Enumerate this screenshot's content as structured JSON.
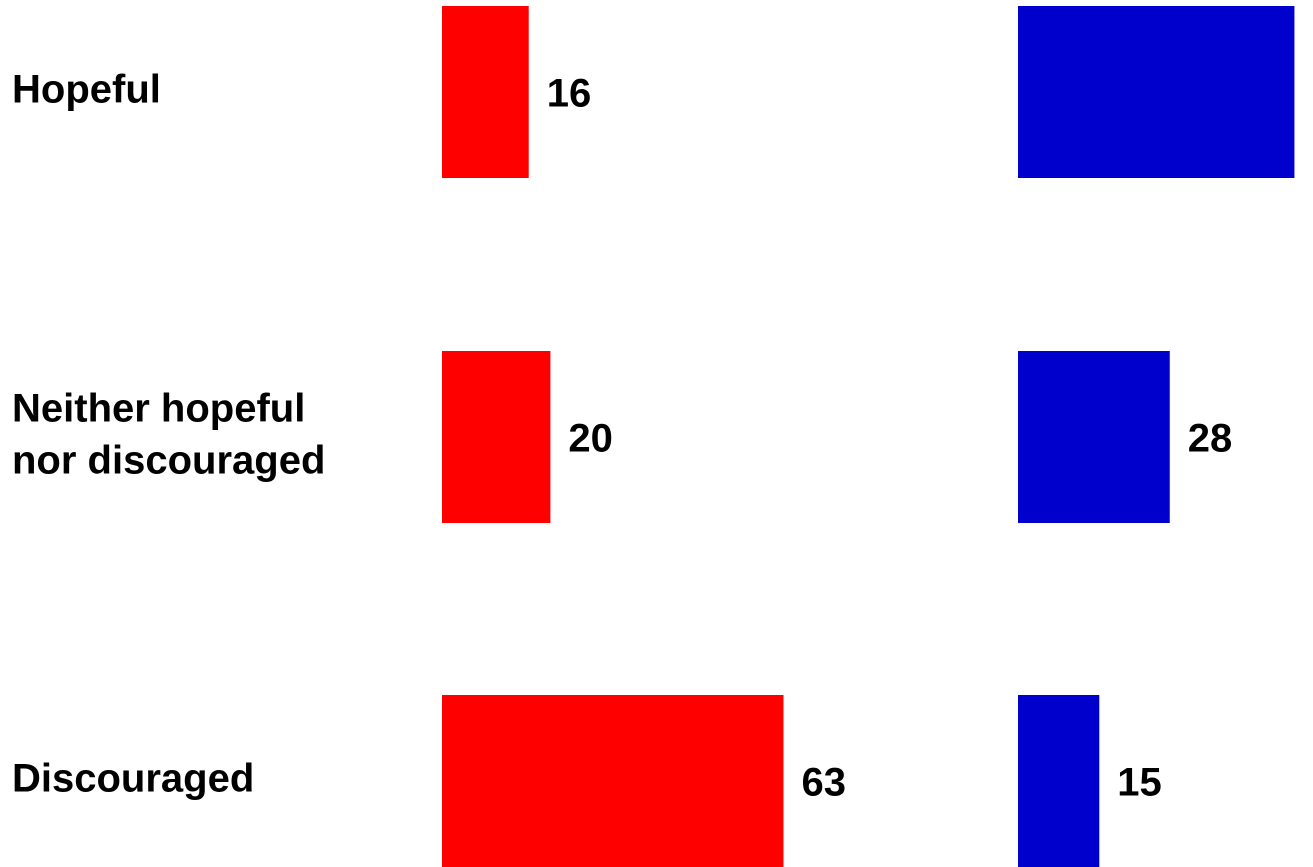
{
  "chart_data": {
    "type": "bar",
    "orientation": "horizontal",
    "title": "",
    "xlabel": "",
    "ylabel": "",
    "legend": "none",
    "grid": false,
    "categories": [
      [
        "Hopeful"
      ],
      [
        "Neither hopeful",
        "nor discouraged"
      ],
      [
        "Discouraged"
      ]
    ],
    "series": [
      {
        "values": [
          16,
          20,
          63
        ],
        "color": "#FF0000"
      },
      {
        "values": [
          51,
          28,
          15
        ],
        "color": "#0000CC"
      }
    ]
  }
}
